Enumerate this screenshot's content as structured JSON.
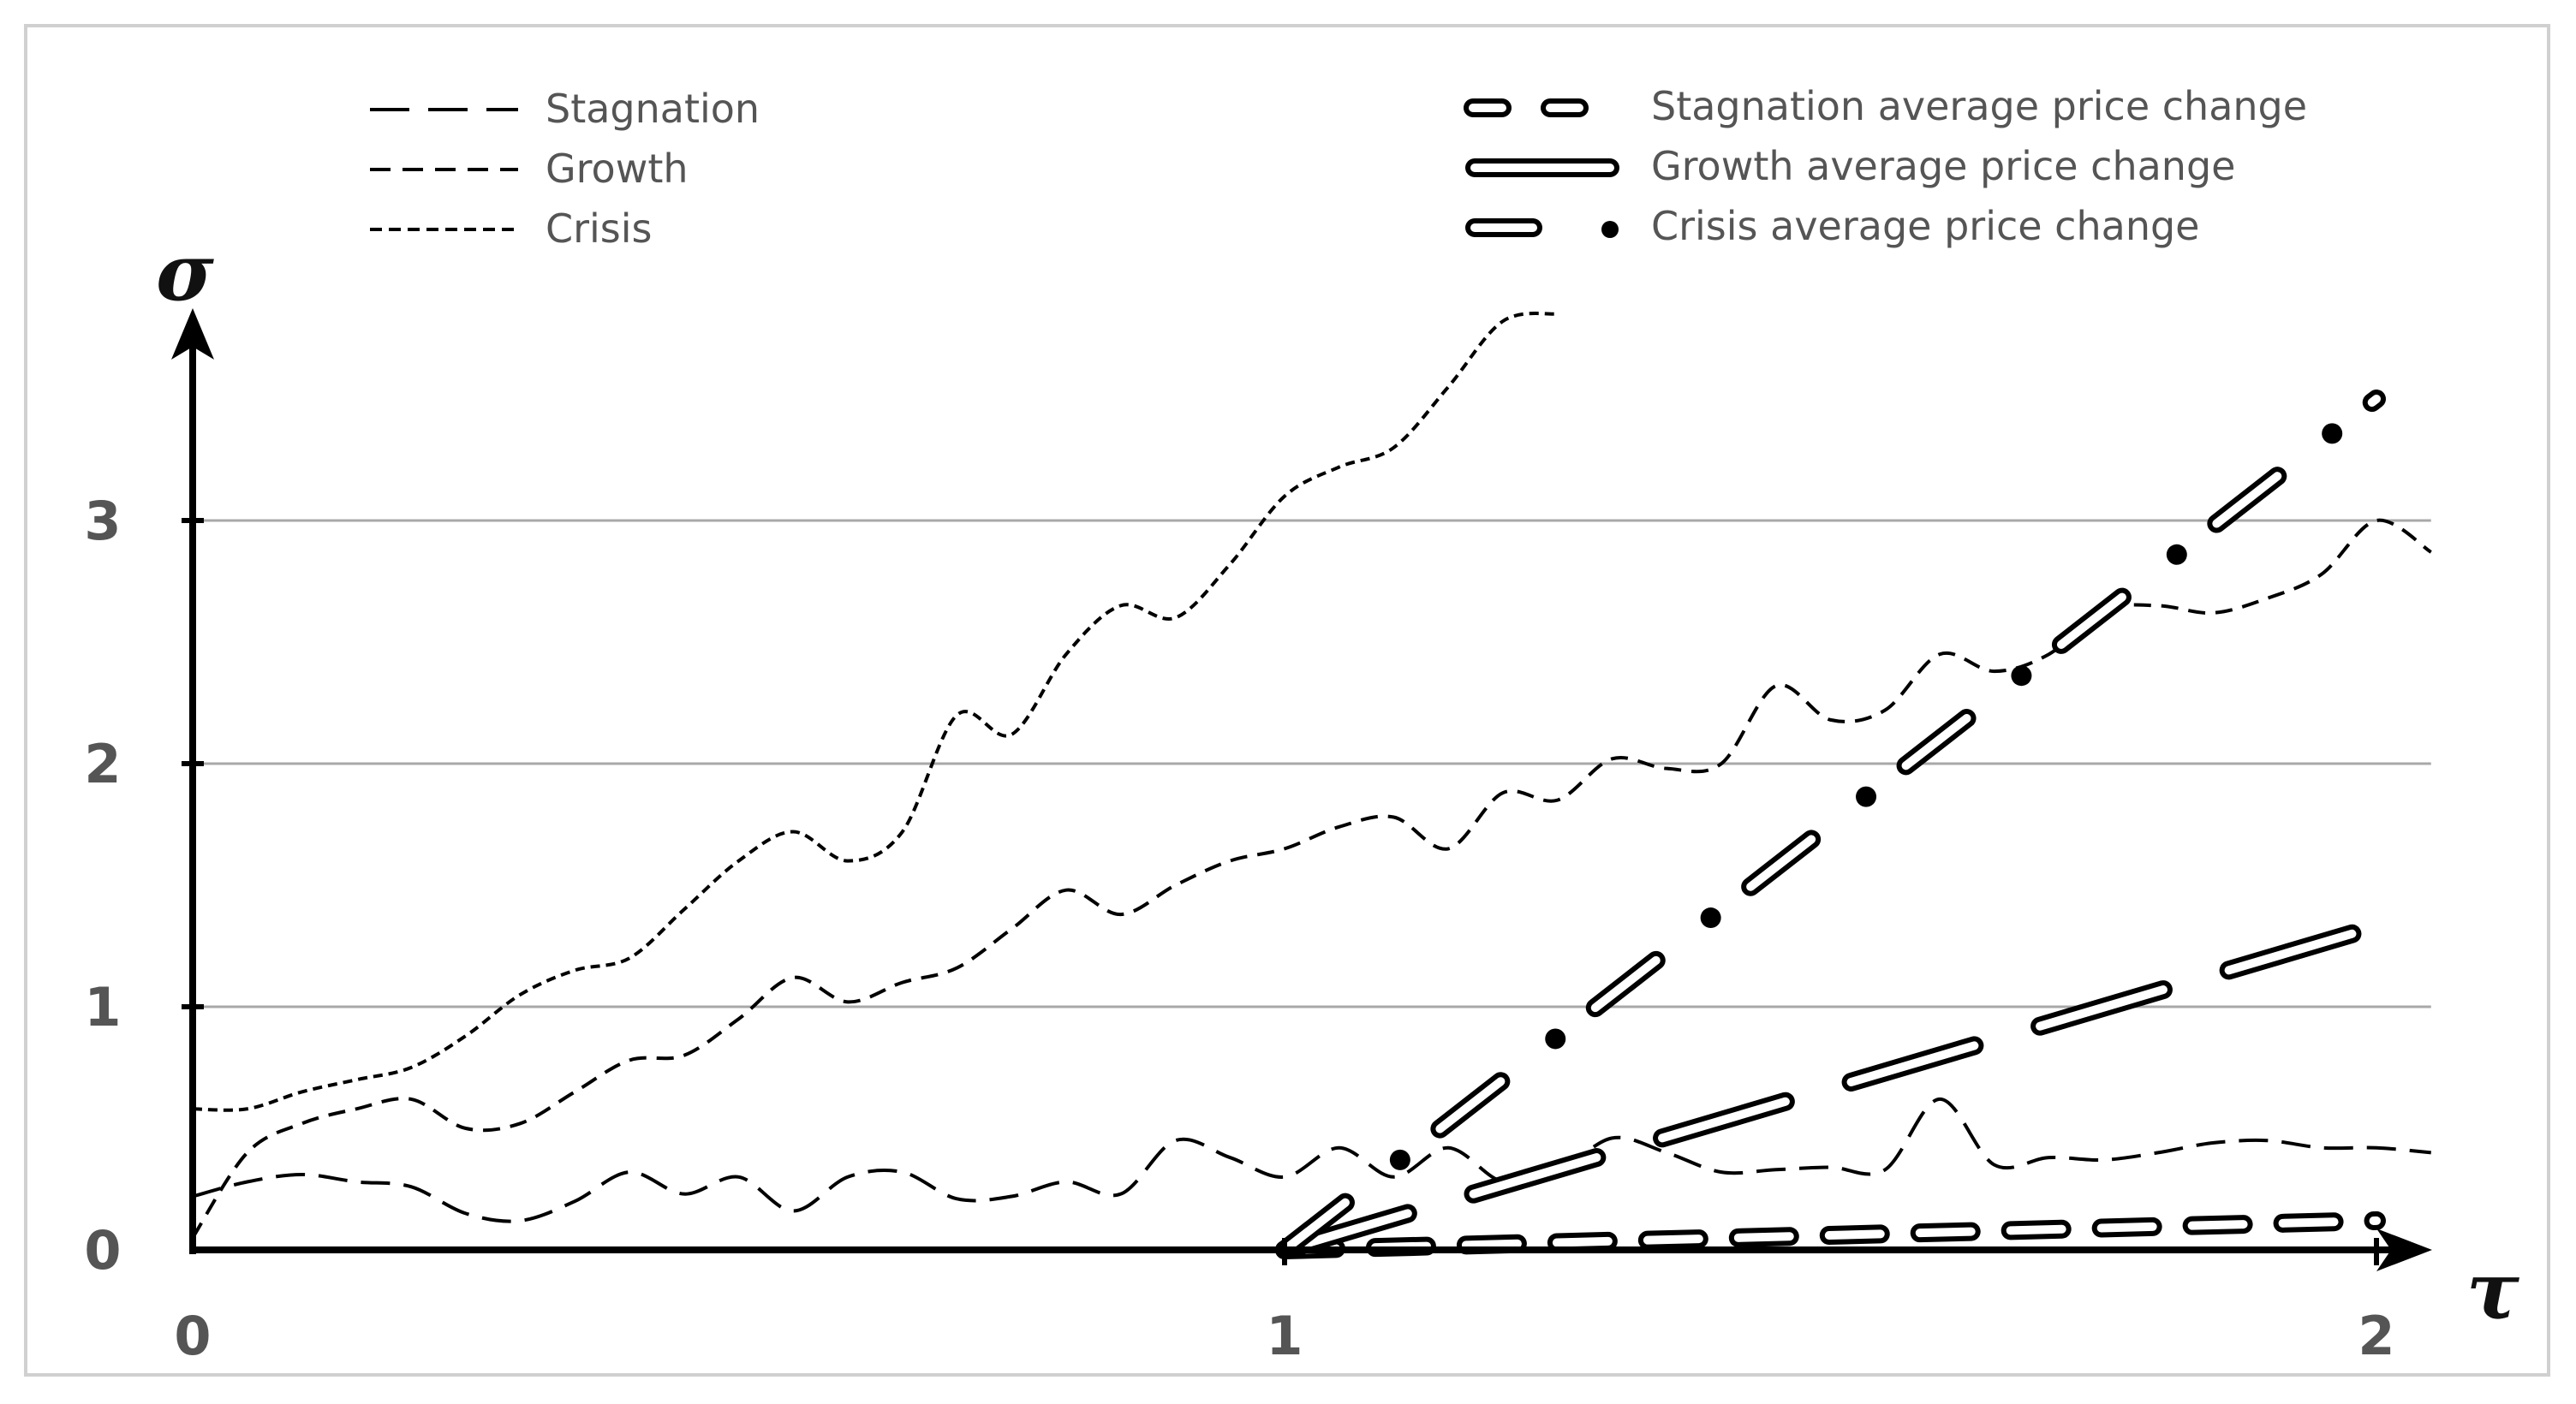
{
  "chart_data": {
    "type": "line",
    "title": "",
    "xlabel": "τ",
    "ylabel": "σ",
    "xlim": [
      0,
      2.05
    ],
    "ylim": [
      0,
      3.85
    ],
    "x_ticks": [
      "0",
      "1",
      "2"
    ],
    "y_ticks": [
      "0",
      "1",
      "2",
      "3"
    ],
    "gridlines_y": [
      1,
      2,
      3
    ],
    "legend": {
      "left": [
        "Stagnation",
        "Growth",
        "Crisis"
      ],
      "right": [
        "Stagnation average price change",
        "Growth average price change",
        "Crisis average price change"
      ]
    },
    "series": [
      {
        "name": "Stagnation",
        "style": "long-dash",
        "x": [
          0,
          0.05,
          0.1,
          0.15,
          0.2,
          0.25,
          0.3,
          0.35,
          0.4,
          0.45,
          0.5,
          0.55,
          0.6,
          0.65,
          0.7,
          0.75,
          0.8,
          0.85,
          0.9,
          0.95,
          1.0,
          1.05,
          1.1,
          1.15,
          1.2,
          1.25,
          1.3,
          1.35,
          1.4,
          1.45,
          1.5,
          1.55,
          1.6,
          1.65,
          1.7,
          1.75,
          1.8,
          1.85,
          1.9,
          1.95,
          2.0,
          2.05
        ],
        "values": [
          0.22,
          0.28,
          0.31,
          0.28,
          0.26,
          0.15,
          0.12,
          0.2,
          0.32,
          0.23,
          0.3,
          0.16,
          0.3,
          0.32,
          0.21,
          0.22,
          0.28,
          0.23,
          0.45,
          0.38,
          0.3,
          0.42,
          0.3,
          0.42,
          0.28,
          0.32,
          0.46,
          0.4,
          0.32,
          0.33,
          0.34,
          0.33,
          0.62,
          0.35,
          0.38,
          0.37,
          0.4,
          0.44,
          0.45,
          0.42,
          0.42,
          0.4
        ]
      },
      {
        "name": "Growth",
        "style": "dash",
        "x": [
          0,
          0.05,
          0.1,
          0.15,
          0.2,
          0.25,
          0.3,
          0.35,
          0.4,
          0.45,
          0.5,
          0.55,
          0.6,
          0.65,
          0.7,
          0.75,
          0.8,
          0.85,
          0.9,
          0.95,
          1.0,
          1.05,
          1.1,
          1.15,
          1.2,
          1.25,
          1.3,
          1.35,
          1.4,
          1.45,
          1.5,
          1.55,
          1.6,
          1.65,
          1.7,
          1.75,
          1.8,
          1.85,
          1.9,
          1.95,
          2.0,
          2.05
        ],
        "values": [
          0.05,
          0.4,
          0.52,
          0.58,
          0.62,
          0.5,
          0.52,
          0.65,
          0.78,
          0.8,
          0.95,
          1.12,
          1.02,
          1.1,
          1.16,
          1.32,
          1.48,
          1.38,
          1.5,
          1.6,
          1.65,
          1.74,
          1.78,
          1.65,
          1.88,
          1.85,
          2.02,
          1.98,
          2.0,
          2.32,
          2.18,
          2.22,
          2.45,
          2.38,
          2.45,
          2.63,
          2.65,
          2.62,
          2.68,
          2.78,
          3.0,
          2.87
        ]
      },
      {
        "name": "Crisis",
        "style": "short-dash",
        "x": [
          0,
          0.05,
          0.1,
          0.15,
          0.2,
          0.25,
          0.3,
          0.35,
          0.4,
          0.45,
          0.5,
          0.55,
          0.6,
          0.65,
          0.7,
          0.75,
          0.8,
          0.85,
          0.9,
          0.95,
          1.0,
          1.05,
          1.1,
          1.15,
          1.2,
          1.25
        ],
        "values": [
          0.58,
          0.58,
          0.65,
          0.7,
          0.75,
          0.88,
          1.05,
          1.15,
          1.2,
          1.4,
          1.6,
          1.72,
          1.6,
          1.72,
          2.2,
          2.12,
          2.45,
          2.65,
          2.6,
          2.82,
          3.1,
          3.22,
          3.3,
          3.55,
          3.82,
          3.85
        ]
      },
      {
        "name": "Stagnation average price change",
        "style": "hollow-dash",
        "x": [
          1.0,
          2.0
        ],
        "values": [
          0.0,
          0.12
        ]
      },
      {
        "name": "Growth average price change",
        "style": "hollow-long",
        "x": [
          1.0,
          2.0
        ],
        "values": [
          0.0,
          1.33
        ]
      },
      {
        "name": "Crisis average price change",
        "style": "hollow-dash-dot",
        "x": [
          1.0,
          2.0
        ],
        "values": [
          0.0,
          3.5
        ]
      }
    ]
  }
}
